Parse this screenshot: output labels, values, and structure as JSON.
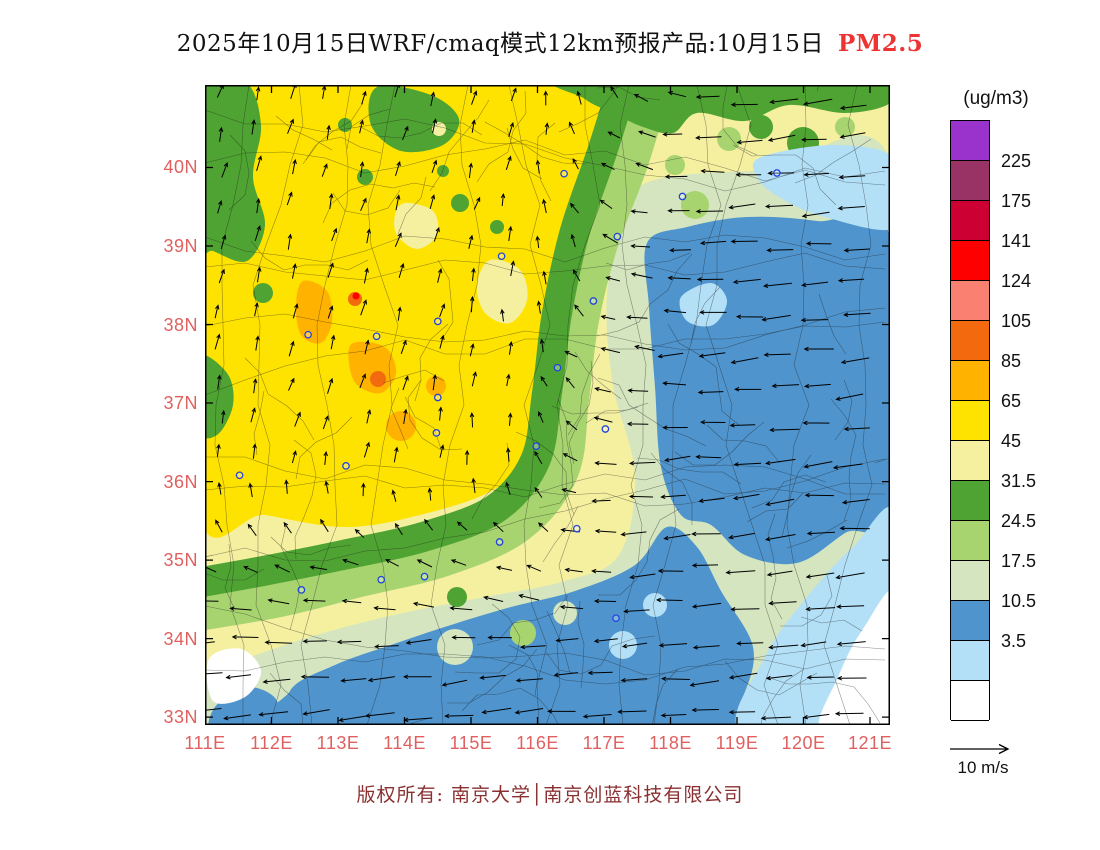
{
  "title": {
    "main": "2025年10月15日WRF/cmaq模式12km预报产品:10月15日",
    "highlight": "PM2.5",
    "highlight_color": "#ee3333"
  },
  "footer": {
    "text": "版权所有: 南京大学│南京创蓝科技有限公司",
    "color": "#8a3030"
  },
  "axes": {
    "lat_labels": [
      "40N",
      "39N",
      "38N",
      "37N",
      "36N",
      "35N",
      "34N",
      "33N"
    ],
    "lon_labels": [
      "111E",
      "112E",
      "113E",
      "114E",
      "115E",
      "116E",
      "117E",
      "118E",
      "119E",
      "120E",
      "121E"
    ],
    "label_color": "#e06060"
  },
  "colorbar": {
    "unit": "(ug/m3)",
    "labels": [
      "225",
      "175",
      "141",
      "124",
      "105",
      "85",
      "65",
      "45",
      "31.5",
      "24.5",
      "17.5",
      "10.5",
      "3.5"
    ],
    "swatches": [
      "#9933cc",
      "#993366",
      "#cc0033",
      "#ff0000",
      "#fa8072",
      "#f26a0d",
      "#ffb300",
      "#ffe300",
      "#f4f0a0",
      "#4fa332",
      "#a8d470",
      "#d4e5c0",
      "#4f94cd",
      "#b3e0f7",
      "#ffffff"
    ]
  },
  "wind_legend": {
    "label": "10 m/s"
  },
  "map": {
    "extent": {
      "lon_min": 111,
      "lon_max": 121.3,
      "lat_min": 32.9,
      "lat_max": 41.05
    },
    "cities": [
      [
        116.4,
        39.92
      ],
      [
        117.2,
        39.12
      ],
      [
        118.18,
        39.63
      ],
      [
        119.6,
        39.93
      ],
      [
        114.5,
        38.04
      ],
      [
        115.46,
        38.87
      ],
      [
        116.84,
        38.3
      ],
      [
        112.55,
        37.87
      ],
      [
        113.58,
        37.85
      ],
      [
        114.5,
        37.07
      ],
      [
        114.48,
        36.62
      ],
      [
        117.02,
        36.67
      ],
      [
        116.3,
        37.45
      ],
      [
        115.98,
        36.45
      ],
      [
        113.65,
        34.75
      ],
      [
        114.3,
        34.79
      ],
      [
        112.45,
        34.62
      ],
      [
        115.43,
        35.23
      ],
      [
        116.59,
        35.4
      ],
      [
        117.18,
        34.26
      ],
      [
        111.52,
        36.08
      ],
      [
        113.12,
        36.2
      ]
    ],
    "regions": [
      {
        "k": "rect",
        "f": "#f4f0a0"
      },
      {
        "k": "p",
        "f": "#ffe300",
        "pts": [
          [
            -8,
            -8
          ],
          [
            380,
            -8
          ],
          [
            398,
            40
          ],
          [
            380,
            100
          ],
          [
            358,
            165
          ],
          [
            348,
            235
          ],
          [
            338,
            305
          ],
          [
            326,
            365
          ],
          [
            288,
            405
          ],
          [
            215,
            430
          ],
          [
            140,
            442
          ],
          [
            60,
            430
          ],
          [
            -8,
            418
          ]
        ]
      },
      {
        "k": "p",
        "f": "#f4f0a0",
        "pts": [
          [
            285,
            175
          ],
          [
            315,
            185
          ],
          [
            322,
            215
          ],
          [
            305,
            238
          ],
          [
            280,
            228
          ],
          [
            272,
            200
          ]
        ]
      },
      {
        "k": "p",
        "f": "#f4f0a0",
        "pts": [
          [
            200,
            118
          ],
          [
            228,
            126
          ],
          [
            232,
            150
          ],
          [
            212,
            164
          ],
          [
            192,
            150
          ],
          [
            190,
            130
          ]
        ]
      },
      {
        "k": "p",
        "f": "#ffb300",
        "pts": [
          [
            98,
            196
          ],
          [
            122,
            206
          ],
          [
            127,
            236
          ],
          [
            116,
            258
          ],
          [
            96,
            250
          ],
          [
            91,
            220
          ]
        ]
      },
      {
        "k": "p",
        "f": "#ffb300",
        "pts": [
          [
            148,
            258
          ],
          [
            180,
            262
          ],
          [
            191,
            288
          ],
          [
            176,
            308
          ],
          [
            152,
            300
          ],
          [
            144,
            278
          ]
        ]
      },
      {
        "k": "c",
        "f": "#ffb300",
        "c": [
          196,
          341,
          15
        ]
      },
      {
        "k": "c",
        "f": "#ffb300",
        "c": [
          231,
          301,
          10
        ]
      },
      {
        "k": "c",
        "f": "#f26a0d",
        "c": [
          150,
          214,
          7
        ]
      },
      {
        "k": "c",
        "f": "#f26a0d",
        "c": [
          173,
          294,
          8
        ]
      },
      {
        "k": "c",
        "f": "#ff0000",
        "c": [
          151,
          211,
          3.5
        ]
      },
      {
        "k": "p",
        "f": "#d4e5c0",
        "pts": [
          [
            446,
            96
          ],
          [
            560,
            86
          ],
          [
            692,
            94
          ],
          [
            692,
            648
          ],
          [
            -8,
            648
          ],
          [
            -8,
            598
          ],
          [
            80,
            560
          ],
          [
            180,
            532
          ],
          [
            280,
            512
          ],
          [
            360,
            496
          ],
          [
            414,
            470
          ],
          [
            430,
            390
          ],
          [
            408,
            300
          ],
          [
            402,
            210
          ],
          [
            420,
            130
          ]
        ]
      },
      {
        "k": "b",
        "s": "#a8d470",
        "w": 48,
        "pts": [
          [
            448,
            -20
          ],
          [
            420,
            74
          ],
          [
            390,
            154
          ],
          [
            370,
            234
          ],
          [
            360,
            314
          ],
          [
            350,
            384
          ],
          [
            308,
            436
          ],
          [
            236,
            468
          ],
          [
            154,
            488
          ],
          [
            74,
            508
          ],
          [
            -20,
            524
          ]
        ]
      },
      {
        "k": "b",
        "s": "#4fa332",
        "w": 30,
        "pts": [
          [
            424,
            -20
          ],
          [
            398,
            64
          ],
          [
            370,
            146
          ],
          [
            352,
            228
          ],
          [
            342,
            308
          ],
          [
            330,
            376
          ],
          [
            290,
            424
          ],
          [
            218,
            452
          ],
          [
            138,
            470
          ],
          [
            58,
            486
          ],
          [
            -20,
            500
          ]
        ]
      },
      {
        "k": "p",
        "f": "#4fa332",
        "pts": [
          [
            -8,
            -8
          ],
          [
            40,
            -4
          ],
          [
            56,
            40
          ],
          [
            48,
            92
          ],
          [
            60,
            140
          ],
          [
            42,
            176
          ],
          [
            8,
            166
          ],
          [
            -8,
            158
          ]
        ]
      },
      {
        "k": "p",
        "f": "#4fa332",
        "pts": [
          [
            172,
            2
          ],
          [
            226,
            10
          ],
          [
            254,
            34
          ],
          [
            238,
            60
          ],
          [
            196,
            66
          ],
          [
            166,
            40
          ]
        ]
      },
      {
        "k": "c",
        "f": "#f4f0a0",
        "c": [
          234,
          44,
          7
        ]
      },
      {
        "k": "p",
        "f": "#4fa332",
        "pts": [
          [
            366,
            -8
          ],
          [
            685,
            -8
          ],
          [
            685,
            18
          ],
          [
            640,
            28
          ],
          [
            584,
            20
          ],
          [
            540,
            36
          ],
          [
            492,
            28
          ],
          [
            468,
            48
          ],
          [
            438,
            42
          ],
          [
            408,
            28
          ],
          [
            380,
            14
          ]
        ]
      },
      {
        "k": "c",
        "f": "#4fa332",
        "c": [
          598,
          58,
          16
        ]
      },
      {
        "k": "c",
        "f": "#4fa332",
        "c": [
          556,
          42,
          12
        ]
      },
      {
        "k": "c",
        "f": "#4fa332",
        "c": [
          255,
          118,
          9
        ]
      },
      {
        "k": "c",
        "f": "#4fa332",
        "c": [
          292,
          142,
          7
        ]
      },
      {
        "k": "c",
        "f": "#4fa332",
        "c": [
          160,
          92,
          8
        ]
      },
      {
        "k": "c",
        "f": "#4fa332",
        "c": [
          58,
          208,
          10
        ]
      },
      {
        "k": "c",
        "f": "#4fa332",
        "c": [
          140,
          40,
          7
        ]
      },
      {
        "k": "c",
        "f": "#4fa332",
        "c": [
          238,
          86,
          6
        ]
      },
      {
        "k": "p",
        "f": "#4fa332",
        "pts": [
          [
            -8,
            272
          ],
          [
            22,
            288
          ],
          [
            28,
            320
          ],
          [
            12,
            350
          ],
          [
            -8,
            344
          ]
        ]
      },
      {
        "k": "c",
        "f": "#a8d470",
        "c": [
          524,
          54,
          12
        ]
      },
      {
        "k": "c",
        "f": "#a8d470",
        "c": [
          470,
          80,
          10
        ]
      },
      {
        "k": "c",
        "f": "#a8d470",
        "c": [
          490,
          120,
          14
        ]
      },
      {
        "k": "c",
        "f": "#a8d470",
        "c": [
          640,
          42,
          10
        ]
      },
      {
        "k": "p",
        "f": "#4f94cd",
        "pts": [
          [
            442,
            158
          ],
          [
            482,
            142
          ],
          [
            542,
            132
          ],
          [
            612,
            136
          ],
          [
            685,
            152
          ],
          [
            685,
            418
          ],
          [
            640,
            448
          ],
          [
            592,
            478
          ],
          [
            540,
            470
          ],
          [
            506,
            440
          ],
          [
            476,
            430
          ],
          [
            456,
            382
          ],
          [
            450,
            302
          ],
          [
            444,
            222
          ]
        ]
      },
      {
        "k": "p",
        "f": "#4f94cd",
        "pts": [
          [
            95,
            648
          ],
          [
            85,
            606
          ],
          [
            130,
            580
          ],
          [
            186,
            560
          ],
          [
            246,
            540
          ],
          [
            306,
            522
          ],
          [
            370,
            506
          ],
          [
            430,
            480
          ],
          [
            462,
            442
          ],
          [
            492,
            462
          ],
          [
            516,
            506
          ],
          [
            548,
            562
          ],
          [
            538,
            612
          ],
          [
            515,
            648
          ]
        ]
      },
      {
        "k": "p",
        "f": "#4f94cd",
        "pts": [
          [
            10,
            622
          ],
          [
            42,
            602
          ],
          [
            72,
            616
          ],
          [
            60,
            648
          ],
          [
            8,
            648
          ]
        ]
      },
      {
        "k": "p",
        "f": "#b3e0f7",
        "pts": [
          [
            556,
            72
          ],
          [
            632,
            60
          ],
          [
            692,
            76
          ],
          [
            692,
            142
          ],
          [
            620,
            132
          ],
          [
            574,
            112
          ],
          [
            552,
            92
          ]
        ]
      },
      {
        "k": "p",
        "f": "#b3e0f7",
        "pts": [
          [
            476,
            212
          ],
          [
            506,
            198
          ],
          [
            522,
            216
          ],
          [
            508,
            240
          ],
          [
            482,
            236
          ]
        ]
      },
      {
        "k": "p",
        "f": "#b3e0f7",
        "pts": [
          [
            538,
            648
          ],
          [
            560,
            572
          ],
          [
            602,
            512
          ],
          [
            648,
            462
          ],
          [
            692,
            432
          ],
          [
            692,
            648
          ]
        ]
      },
      {
        "k": "c",
        "f": "#b3e0f7",
        "c": [
          418,
          560,
          14
        ]
      },
      {
        "k": "c",
        "f": "#b3e0f7",
        "c": [
          450,
          520,
          12
        ]
      },
      {
        "k": "p",
        "f": "#ffffff",
        "pts": [
          [
            616,
            648
          ],
          [
            692,
            648
          ],
          [
            692,
            508
          ],
          [
            658,
            544
          ],
          [
            634,
            590
          ]
        ]
      },
      {
        "k": "p",
        "f": "#ffffff",
        "pts": [
          [
            4,
            574
          ],
          [
            36,
            564
          ],
          [
            56,
            586
          ],
          [
            40,
            612
          ],
          [
            8,
            616
          ]
        ]
      },
      {
        "k": "c",
        "f": "#d4e5c0",
        "c": [
          250,
          562,
          18
        ]
      },
      {
        "k": "c",
        "f": "#a8d470",
        "c": [
          318,
          548,
          13
        ]
      },
      {
        "k": "c",
        "f": "#d4e5c0",
        "c": [
          360,
          528,
          12
        ]
      },
      {
        "k": "c",
        "f": "#4fa332",
        "c": [
          252,
          512,
          10
        ]
      }
    ]
  }
}
